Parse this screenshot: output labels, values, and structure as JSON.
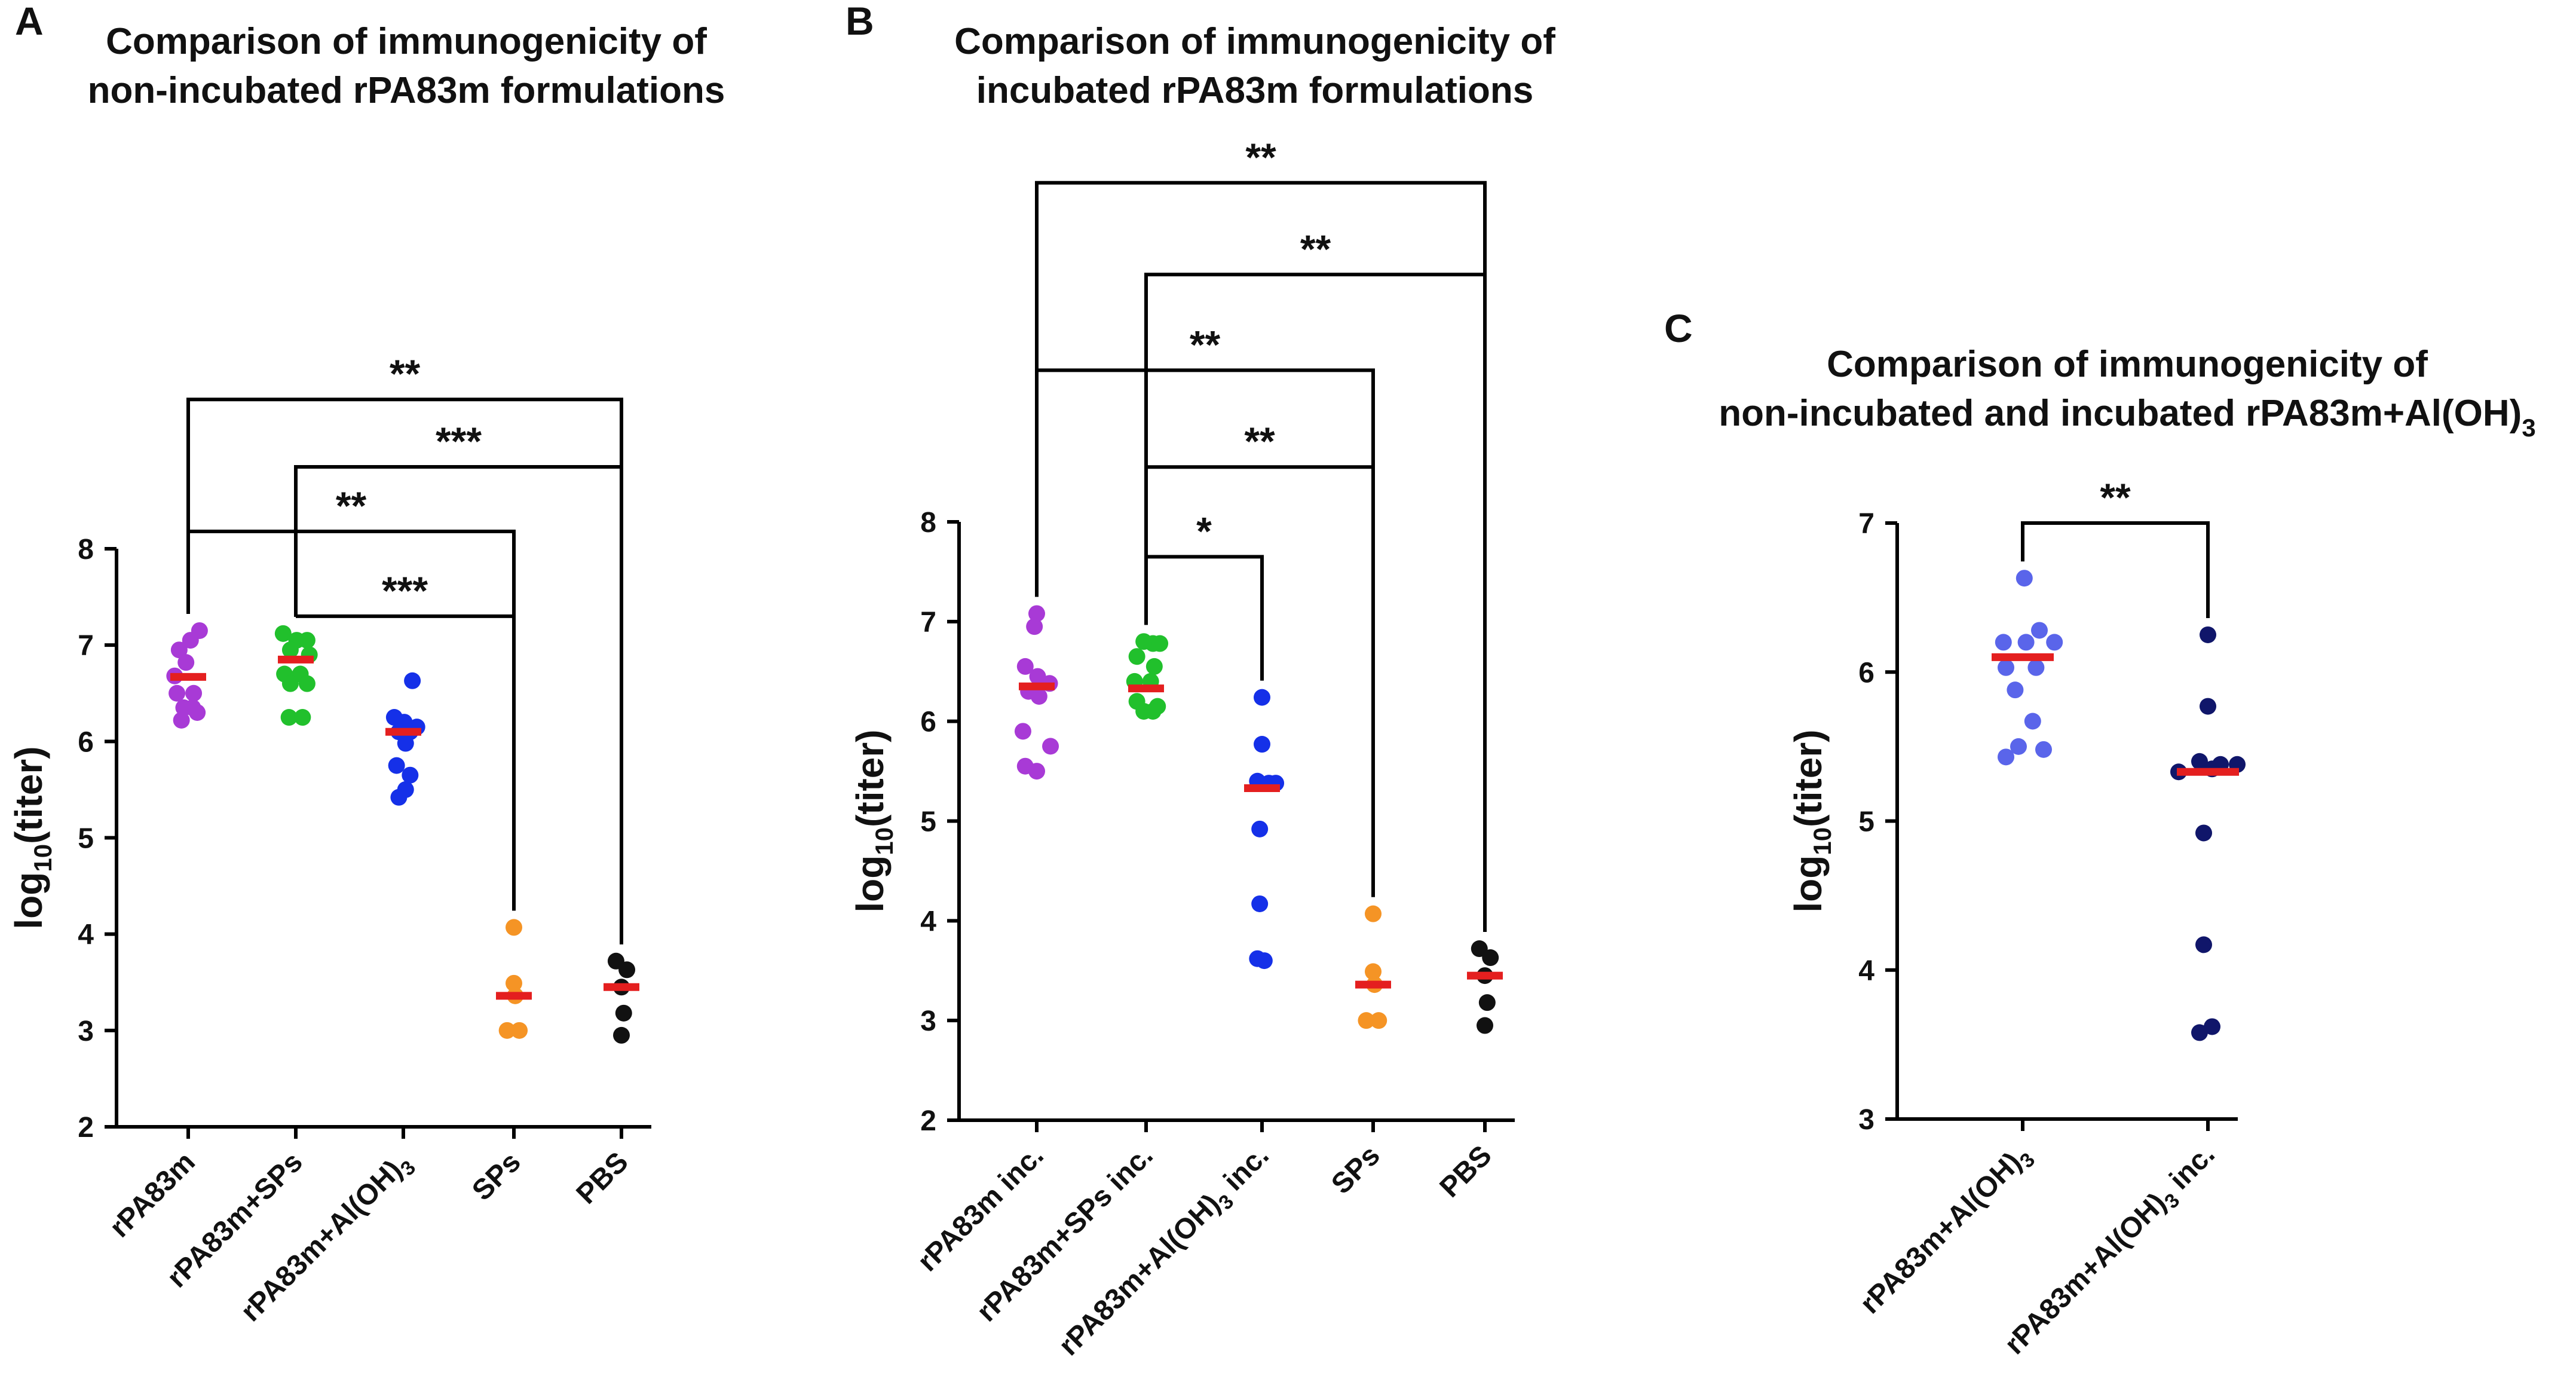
{
  "colors": {
    "median": "#e41f1f",
    "rPA83m": "#a83ad6",
    "rPA83m_SPs": "#21c02c",
    "rPA83m_AlOH3": "#1530e8",
    "SPs": "#f59425",
    "PBS": "#111111",
    "C_nonincubated": "#5a65ea",
    "C_incubated": "#10166a"
  },
  "chart_data": [
    {
      "type": "scatter",
      "panel_letter": "A",
      "title_lines": [
        "Comparison of immunogenicity of",
        "non-incubated rPA83m formulations"
      ],
      "ylabel_prefix": "log",
      "ylabel_sub": "10",
      "ylabel_suffix": "(titer)",
      "ylim": [
        2,
        8
      ],
      "yticks": [
        "2",
        "3",
        "4",
        "5",
        "6",
        "7",
        "8"
      ],
      "categories": [
        {
          "label": "rPA83m",
          "sub": "",
          "tail": ""
        },
        {
          "label": "rPA83m+SPs",
          "sub": "",
          "tail": ""
        },
        {
          "label": "rPA83m+Al(OH)",
          "sub": "3",
          "tail": ""
        },
        {
          "label": "SPs",
          "sub": "",
          "tail": ""
        },
        {
          "label": "PBS",
          "sub": "",
          "tail": ""
        }
      ],
      "series": [
        {
          "name": "rPA83m",
          "color_key": "rPA83m",
          "median": 6.67,
          "points": [
            [
              -0.3,
              6.68
            ],
            [
              -0.05,
              6.82
            ],
            [
              -0.2,
              6.95
            ],
            [
              0.05,
              7.05
            ],
            [
              0.25,
              7.15
            ],
            [
              -0.25,
              6.5
            ],
            [
              0.12,
              6.5
            ],
            [
              -0.1,
              6.35
            ],
            [
              0.1,
              6.35
            ],
            [
              -0.15,
              6.22
            ],
            [
              0.2,
              6.3
            ]
          ]
        },
        {
          "name": "rPA83m+SPs",
          "color_key": "rPA83m_SPs",
          "median": 6.85,
          "points": [
            [
              -0.28,
              7.12
            ],
            [
              0.02,
              7.05
            ],
            [
              0.25,
              7.05
            ],
            [
              -0.12,
              6.95
            ],
            [
              0.3,
              6.9
            ],
            [
              -0.25,
              6.7
            ],
            [
              0.1,
              6.7
            ],
            [
              -0.12,
              6.6
            ],
            [
              0.25,
              6.6
            ],
            [
              -0.15,
              6.25
            ],
            [
              0.15,
              6.25
            ]
          ]
        },
        {
          "name": "rPA83m+Al(OH)3",
          "color_key": "rPA83m_AlOH3",
          "median": 6.1,
          "points": [
            [
              0.2,
              6.63
            ],
            [
              -0.2,
              6.25
            ],
            [
              0.02,
              6.2
            ],
            [
              0.3,
              6.15
            ],
            [
              -0.1,
              6.1
            ],
            [
              0.15,
              6.1
            ],
            [
              0.05,
              5.98
            ],
            [
              -0.15,
              5.75
            ],
            [
              0.15,
              5.65
            ],
            [
              0.05,
              5.5
            ],
            [
              -0.1,
              5.42
            ]
          ]
        },
        {
          "name": "SPs",
          "color_key": "SPs",
          "median": 3.36,
          "points": [
            [
              0.0,
              4.07
            ],
            [
              0.0,
              3.49
            ],
            [
              0.03,
              3.36
            ],
            [
              -0.15,
              3.0
            ],
            [
              0.12,
              3.0
            ]
          ]
        },
        {
          "name": "PBS",
          "color_key": "PBS",
          "median": 3.45,
          "points": [
            [
              -0.12,
              3.72
            ],
            [
              0.12,
              3.63
            ],
            [
              0.0,
              3.45
            ],
            [
              0.05,
              3.18
            ],
            [
              0.0,
              2.95
            ]
          ]
        }
      ],
      "comparisons": [
        {
          "from": 0,
          "to": 4,
          "y": 9.55,
          "label": "**"
        },
        {
          "from": 1,
          "to": 4,
          "y": 8.85,
          "label": "***"
        },
        {
          "from": 0,
          "to": 3,
          "y": 8.18,
          "label": "**"
        },
        {
          "from": 1,
          "to": 3,
          "y": 7.3,
          "label": "***"
        }
      ]
    },
    {
      "type": "scatter",
      "panel_letter": "B",
      "title_lines": [
        "Comparison of immunogenicity of",
        "incubated rPA83m formulations"
      ],
      "ylabel_prefix": "log",
      "ylabel_sub": "10",
      "ylabel_suffix": "(titer)",
      "ylim": [
        2,
        8
      ],
      "yticks": [
        "2",
        "3",
        "4",
        "5",
        "6",
        "7",
        "8"
      ],
      "categories": [
        {
          "label": "rPA83m inc.",
          "sub": "",
          "tail": ""
        },
        {
          "label": "rPA83m+SPs inc.",
          "sub": "",
          "tail": ""
        },
        {
          "label": "rPA83m+Al(OH)",
          "sub": "3",
          "tail": " inc."
        },
        {
          "label": "SPs",
          "sub": "",
          "tail": ""
        },
        {
          "label": "PBS",
          "sub": "",
          "tail": ""
        }
      ],
      "series": [
        {
          "name": "rPA83m inc.",
          "color_key": "rPA83m",
          "median": 6.35,
          "points": [
            [
              0.0,
              7.08
            ],
            [
              -0.05,
              6.95
            ],
            [
              -0.25,
              6.55
            ],
            [
              0.02,
              6.45
            ],
            [
              0.28,
              6.38
            ],
            [
              -0.18,
              6.3
            ],
            [
              0.05,
              6.25
            ],
            [
              -0.3,
              5.9
            ],
            [
              0.3,
              5.75
            ],
            [
              -0.25,
              5.55
            ],
            [
              0.0,
              5.5
            ]
          ]
        },
        {
          "name": "rPA83m+SPs inc.",
          "color_key": "rPA83m_SPs",
          "median": 6.33,
          "points": [
            [
              -0.05,
              6.8
            ],
            [
              0.15,
              6.78
            ],
            [
              0.3,
              6.78
            ],
            [
              -0.2,
              6.65
            ],
            [
              0.18,
              6.55
            ],
            [
              -0.25,
              6.4
            ],
            [
              0.1,
              6.4
            ],
            [
              -0.2,
              6.2
            ],
            [
              0.25,
              6.15
            ],
            [
              -0.05,
              6.1
            ],
            [
              0.15,
              6.1
            ]
          ]
        },
        {
          "name": "rPA83m+Al(OH)3 inc.",
          "color_key": "rPA83m_AlOH3",
          "median": 5.33,
          "points": [
            [
              0.0,
              6.24
            ],
            [
              0.0,
              5.77
            ],
            [
              -0.1,
              5.4
            ],
            [
              0.15,
              5.38
            ],
            [
              0.3,
              5.38
            ],
            [
              -0.05,
              4.92
            ],
            [
              -0.05,
              4.17
            ],
            [
              -0.1,
              3.62
            ],
            [
              0.05,
              3.6
            ]
          ]
        },
        {
          "name": "SPs",
          "color_key": "SPs",
          "median": 3.36,
          "points": [
            [
              0.0,
              4.07
            ],
            [
              0.0,
              3.49
            ],
            [
              0.03,
              3.36
            ],
            [
              -0.15,
              3.0
            ],
            [
              0.12,
              3.0
            ]
          ]
        },
        {
          "name": "PBS",
          "color_key": "PBS",
          "median": 3.45,
          "points": [
            [
              -0.12,
              3.72
            ],
            [
              0.12,
              3.63
            ],
            [
              0.0,
              3.45
            ],
            [
              0.05,
              3.18
            ],
            [
              0.0,
              2.95
            ]
          ]
        }
      ],
      "comparisons": [
        {
          "from": 0,
          "to": 4,
          "y": 11.4,
          "label": "**"
        },
        {
          "from": 1,
          "to": 4,
          "y": 10.48,
          "label": "**"
        },
        {
          "from": 0,
          "to": 3,
          "y": 9.52,
          "label": "**"
        },
        {
          "from": 1,
          "to": 3,
          "y": 8.55,
          "label": "**"
        },
        {
          "from": 1,
          "to": 2,
          "y": 7.65,
          "label": "*"
        }
      ]
    },
    {
      "type": "scatter",
      "panel_letter": "C",
      "title_lines": [
        "Comparison of immunogenicity of",
        "non-incubated and incubated rPA83m+Al(OH)",
        "3"
      ],
      "ylabel_prefix": "log",
      "ylabel_sub": "10",
      "ylabel_suffix": "(titer)",
      "ylim": [
        3,
        7
      ],
      "yticks": [
        "3",
        "4",
        "5",
        "6",
        "7"
      ],
      "categories": [
        {
          "label": "rPA83m+Al(OH)",
          "sub": "3",
          "tail": ""
        },
        {
          "label": "rPA83m+Al(OH)",
          "sub": "3",
          "tail": " inc."
        }
      ],
      "series": [
        {
          "name": "rPA83m+Al(OH)3",
          "color_key": "C_nonincubated",
          "median": 6.1,
          "points": [
            [
              0.02,
              6.63
            ],
            [
              0.2,
              6.28
            ],
            [
              0.38,
              6.2
            ],
            [
              -0.23,
              6.2
            ],
            [
              0.04,
              6.2
            ],
            [
              -0.2,
              6.03
            ],
            [
              0.16,
              6.03
            ],
            [
              -0.09,
              5.88
            ],
            [
              0.12,
              5.67
            ],
            [
              -0.05,
              5.5
            ],
            [
              0.25,
              5.48
            ],
            [
              -0.2,
              5.43
            ]
          ]
        },
        {
          "name": "rPA83m+Al(OH)3 inc.",
          "color_key": "C_incubated",
          "median": 5.33,
          "points": [
            [
              0.0,
              6.25
            ],
            [
              0.0,
              5.77
            ],
            [
              -0.1,
              5.4
            ],
            [
              0.15,
              5.38
            ],
            [
              0.35,
              5.38
            ],
            [
              -0.35,
              5.33
            ],
            [
              0.05,
              5.35
            ],
            [
              -0.05,
              4.92
            ],
            [
              -0.05,
              4.17
            ],
            [
              -0.1,
              3.58
            ],
            [
              0.05,
              3.62
            ]
          ]
        }
      ],
      "comparisons": [
        {
          "from": 0,
          "to": 1,
          "y": 7.0,
          "label": "**"
        }
      ]
    }
  ]
}
